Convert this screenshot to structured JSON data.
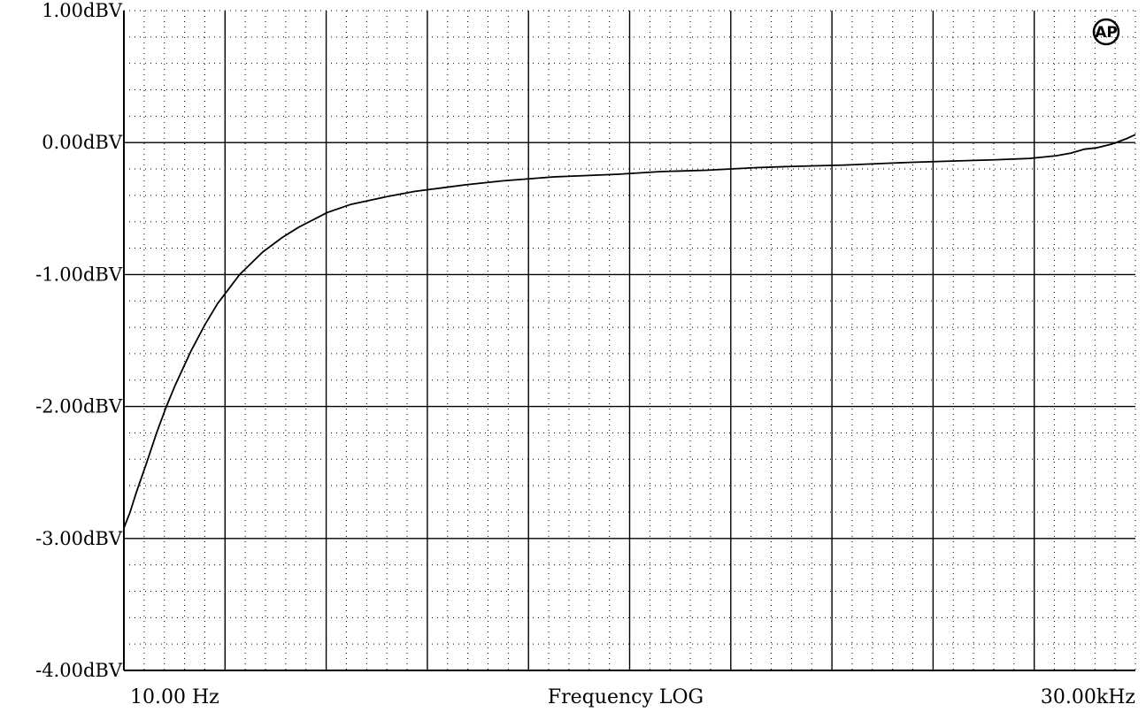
{
  "chart_data": {
    "type": "line",
    "title": "",
    "xlabel": "Frequency LOG",
    "ylabel": "",
    "x_scale": "log",
    "xlim": [
      10,
      30000
    ],
    "ylim": [
      -4,
      1
    ],
    "x_left_label": "10.00 Hz",
    "x_right_label": "30.00kHz",
    "y_ticks": [
      {
        "value": 1,
        "label": "1.00dBV"
      },
      {
        "value": 0,
        "label": "0.00dBV"
      },
      {
        "value": -1,
        "label": "-1.00dBV"
      },
      {
        "value": -2,
        "label": "-2.00dBV"
      },
      {
        "value": -3,
        "label": "-3.00dBV"
      },
      {
        "value": -4,
        "label": "-4.00dBV"
      }
    ],
    "grid": true,
    "x_major_divisions": 10,
    "y_minor_per_major": 5,
    "x_minor_per_major": 5,
    "series": [
      {
        "color": "#000000",
        "x": [
          10,
          10.5,
          11,
          12,
          13,
          14,
          15,
          17,
          19,
          21,
          25,
          30,
          35,
          40,
          50,
          60,
          80,
          100,
          150,
          200,
          300,
          500,
          700,
          1000,
          1500,
          2000,
          3000,
          5000,
          7000,
          10000,
          13000,
          16000,
          18000,
          20000,
          22000,
          25000,
          28000,
          30000
        ],
        "y": [
          -2.92,
          -2.8,
          -2.66,
          -2.42,
          -2.19,
          -2.0,
          -1.84,
          -1.58,
          -1.38,
          -1.22,
          -1.0,
          -0.83,
          -0.72,
          -0.64,
          -0.53,
          -0.47,
          -0.41,
          -0.37,
          -0.32,
          -0.29,
          -0.26,
          -0.24,
          -0.22,
          -0.21,
          -0.19,
          -0.18,
          -0.17,
          -0.15,
          -0.14,
          -0.13,
          -0.12,
          -0.1,
          -0.08,
          -0.05,
          -0.04,
          -0.01,
          0.03,
          0.06
        ]
      }
    ]
  },
  "logo": {
    "icon": "ap-logo-icon",
    "text": "AP"
  }
}
